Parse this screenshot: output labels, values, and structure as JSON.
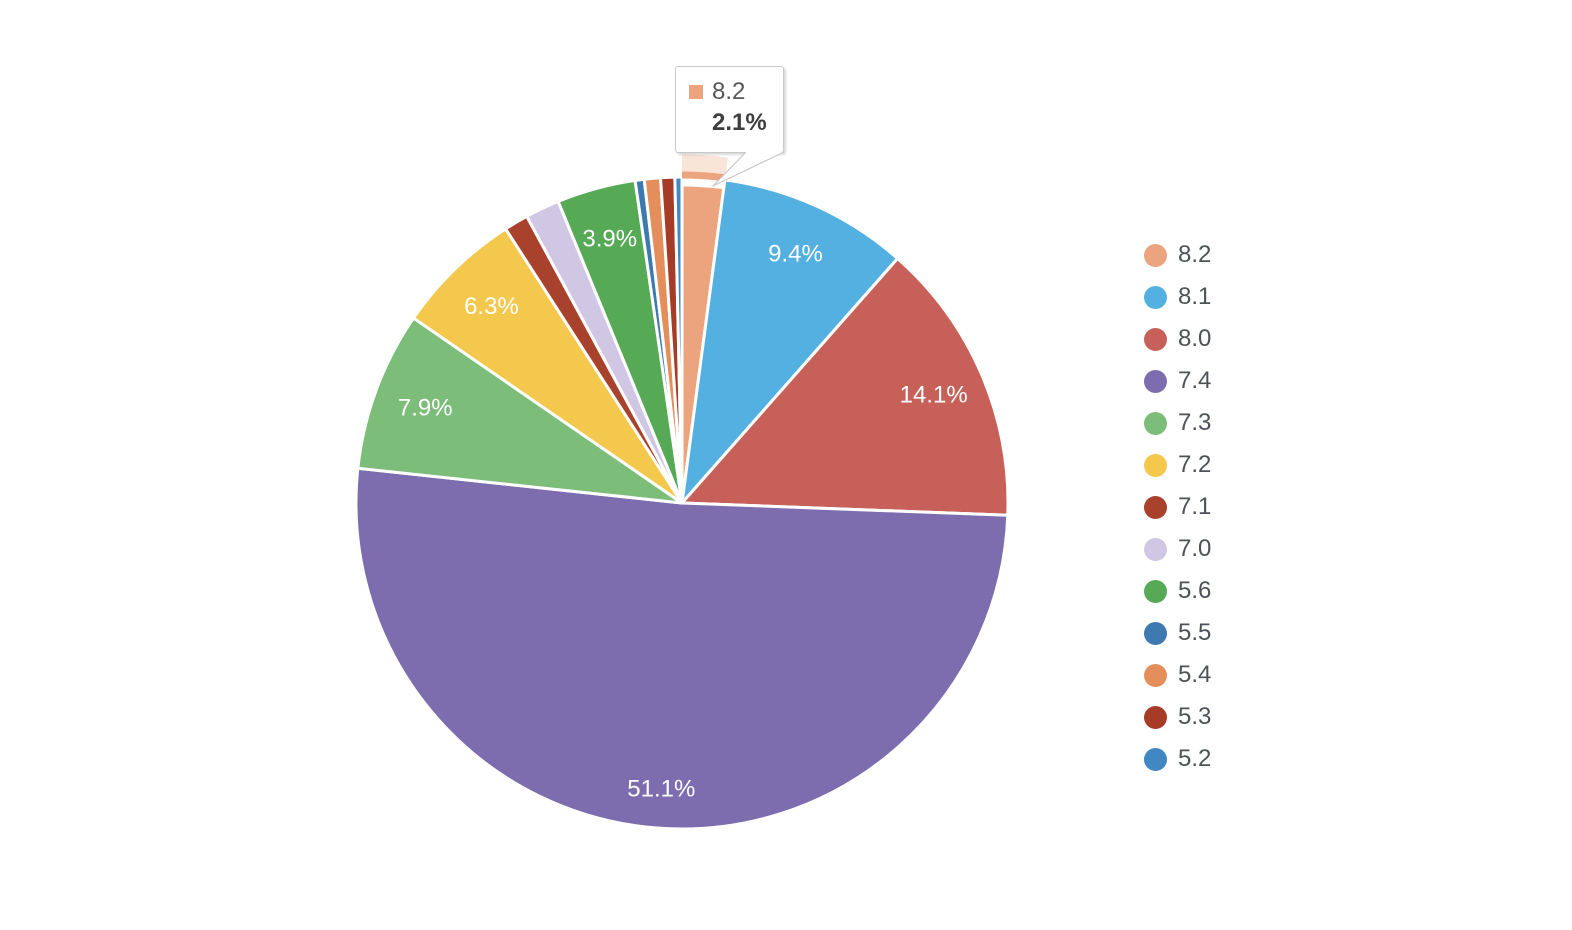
{
  "tooltip": {
    "label": "8.2",
    "value_text": "2.1%",
    "swatch_color": "#eba47e"
  },
  "chart_data": {
    "type": "pie",
    "title": "",
    "legend_position": "right",
    "direction": "clockwise",
    "start_angle_deg": 0,
    "label_color": "#ffffff",
    "selected_slice": "8.2",
    "slices": [
      {
        "label": "8.2",
        "value": 2.1,
        "pct_label": "2.1%",
        "color": "#eba47e",
        "show_pct_on_slice": false,
        "selected": true
      },
      {
        "label": "8.1",
        "value": 9.4,
        "pct_label": "9.4%",
        "color": "#55b0e2",
        "show_pct_on_slice": true
      },
      {
        "label": "8.0",
        "value": 14.1,
        "pct_label": "14.1%",
        "color": "#c8605a",
        "show_pct_on_slice": true
      },
      {
        "label": "7.4",
        "value": 51.1,
        "pct_label": "51.1%",
        "color": "#7d6dae",
        "show_pct_on_slice": true
      },
      {
        "label": "7.3",
        "value": 7.9,
        "pct_label": "7.9%",
        "color": "#7cbd7a",
        "show_pct_on_slice": true
      },
      {
        "label": "7.2",
        "value": 6.3,
        "pct_label": "6.3%",
        "color": "#f4c74d",
        "show_pct_on_slice": true
      },
      {
        "label": "7.1",
        "value": 1.2,
        "color": "#a9422d",
        "show_pct_on_slice": false
      },
      {
        "label": "7.0",
        "value": 1.7,
        "color": "#cfc7e4",
        "show_pct_on_slice": false
      },
      {
        "label": "5.6",
        "value": 3.9,
        "pct_label": "3.9%",
        "color": "#57aa55",
        "show_pct_on_slice": true
      },
      {
        "label": "5.5",
        "value": 0.45,
        "color": "#3e7ab0",
        "show_pct_on_slice": false
      },
      {
        "label": "5.4",
        "value": 0.8,
        "color": "#e48e5c",
        "show_pct_on_slice": false
      },
      {
        "label": "5.3",
        "value": 0.7,
        "color": "#a63c28",
        "show_pct_on_slice": false
      },
      {
        "label": "5.2",
        "value": 0.35,
        "color": "#4187c1",
        "show_pct_on_slice": false
      }
    ]
  }
}
